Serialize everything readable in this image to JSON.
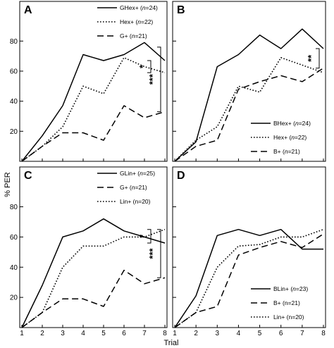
{
  "figure": {
    "ylabel": "% PER",
    "xlabel": "Trial"
  },
  "chart_data": [
    {
      "panel": "A",
      "type": "line",
      "x": [
        1,
        2,
        3,
        4,
        5,
        6,
        7,
        8
      ],
      "ylim": [
        0,
        100
      ],
      "y_ticks": [
        20,
        40,
        60,
        80
      ],
      "x_ticks": [
        1,
        2,
        3,
        4,
        5,
        6,
        7,
        8
      ],
      "legend_position": "top-right",
      "series": [
        {
          "name": "GHex+ (n=24)",
          "name_parts": [
            "GHex+ (",
            "n",
            "=24)"
          ],
          "style": "solid",
          "values": [
            0,
            17,
            37,
            71,
            67,
            71,
            79,
            67
          ]
        },
        {
          "name": "Hex+ (n=22)",
          "name_parts": [
            "Hex+ (",
            "n",
            "=22)"
          ],
          "style": "dotted",
          "values": [
            0,
            10,
            23,
            50,
            45,
            69,
            63,
            59
          ]
        },
        {
          "name": "G+ (n=21)",
          "name_parts": [
            "G+ (",
            "n",
            "=21)"
          ],
          "style": "dashed",
          "values": [
            0,
            10,
            19,
            19,
            14,
            37,
            29,
            33
          ]
        }
      ],
      "significance": [
        {
          "label": "*",
          "from": 67,
          "to": 59
        },
        {
          "label": "***",
          "from": 76,
          "to": 33
        }
      ]
    },
    {
      "panel": "B",
      "type": "line",
      "x": [
        1,
        2,
        3,
        4,
        5,
        6,
        7,
        8
      ],
      "ylim": [
        0,
        100
      ],
      "y_ticks": [
        20,
        40,
        60,
        80
      ],
      "x_ticks": [
        1,
        2,
        3,
        4,
        5,
        6,
        7,
        8
      ],
      "legend_position": "bottom-right",
      "series": [
        {
          "name": "BHex+ (n=24)",
          "name_parts": [
            "BHex+ (",
            "n",
            "=24)"
          ],
          "style": "solid",
          "values": [
            0,
            13,
            63,
            71,
            84,
            75,
            88,
            75
          ]
        },
        {
          "name": "Hex+ (n=22)",
          "name_parts": [
            "Hex+ (",
            "n",
            "=22)"
          ],
          "style": "dotted",
          "values": [
            0,
            14,
            23,
            50,
            46,
            69,
            64,
            59
          ]
        },
        {
          "name": "B+ (n=21)",
          "name_parts": [
            "B+ (",
            "n",
            "=21)"
          ],
          "style": "dashed",
          "values": [
            0,
            10,
            14,
            48,
            53,
            57,
            53,
            62
          ]
        }
      ],
      "significance": [
        {
          "label": "**",
          "from": 75,
          "to": 62
        }
      ]
    },
    {
      "panel": "C",
      "type": "line",
      "x": [
        1,
        2,
        3,
        4,
        5,
        6,
        7,
        8
      ],
      "ylim": [
        0,
        100
      ],
      "y_ticks": [
        20,
        40,
        60,
        80
      ],
      "x_ticks": [
        1,
        2,
        3,
        4,
        5,
        6,
        7,
        8
      ],
      "legend_position": "top-right",
      "series": [
        {
          "name": "GLin+ (n=25)",
          "name_parts": [
            "GLin+ (",
            "n",
            "=25)"
          ],
          "style": "solid",
          "values": [
            0,
            28,
            60,
            64,
            72,
            64,
            60,
            56
          ]
        },
        {
          "name": "G+ (n=21)",
          "name_parts": [
            "G+ (",
            "n",
            "=21)"
          ],
          "style": "dashed",
          "values": [
            0,
            10,
            19,
            19,
            14,
            38,
            29,
            33
          ]
        },
        {
          "name": "Lin+ (n=20)",
          "name_parts": [
            "Lin+ (n=20)"
          ],
          "style": "dotted",
          "values": [
            0,
            10,
            40,
            54,
            54,
            60,
            60,
            65
          ]
        }
      ],
      "significance": [
        {
          "label": "*",
          "from": 65,
          "to": 56
        },
        {
          "label": "***",
          "from": 65,
          "to": 33
        }
      ]
    },
    {
      "panel": "D",
      "type": "line",
      "x": [
        1,
        2,
        3,
        4,
        5,
        6,
        7,
        8
      ],
      "ylim": [
        0,
        100
      ],
      "y_ticks": [
        20,
        40,
        60,
        80
      ],
      "x_ticks": [
        1,
        2,
        3,
        4,
        5,
        6,
        7,
        8
      ],
      "legend_position": "bottom-right",
      "series": [
        {
          "name": "BLin+ (n=23)",
          "name_parts": [
            "BLin+ (",
            "n",
            "=23)"
          ],
          "style": "solid",
          "values": [
            0,
            21,
            61,
            65,
            61,
            65,
            52,
            52
          ]
        },
        {
          "name": "B+ (n=21)",
          "name_parts": [
            "B+ (n=21)"
          ],
          "style": "dashed",
          "values": [
            0,
            10,
            14,
            48,
            53,
            57,
            53,
            62
          ]
        },
        {
          "name": "Lin+ (n=20)",
          "name_parts": [
            "Lin+ (n=20)"
          ],
          "style": "dotted",
          "values": [
            0,
            10,
            40,
            54,
            55,
            60,
            60,
            65
          ]
        }
      ],
      "significance": []
    }
  ]
}
